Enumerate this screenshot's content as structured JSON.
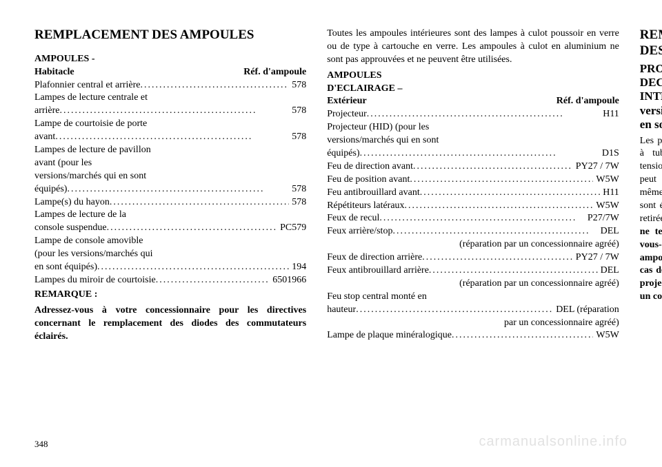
{
  "page_number": "348",
  "watermark": "carmanualsonline.info",
  "col1": {
    "title": "REMPLACEMENT DES AMPOULES",
    "subheader": "AMPOULES -",
    "table_header_left": "Habitacle",
    "table_header_right": "Réf. d'ampoule",
    "rows": [
      {
        "label": "Plafonnier central et arrière",
        "ref": "578"
      },
      {
        "label": "Lampes de lecture centrale et arrière",
        "ref": "578"
      },
      {
        "label": "Lampe de courtoisie de porte avant",
        "ref": "578"
      },
      {
        "label": "Lampes de lecture de pavillon avant (pour les versions/marchés qui en sont équipés)",
        "ref": "578"
      },
      {
        "label": "Lampe(s) du hayon",
        "ref": "578"
      },
      {
        "label": "Lampes de lecture de la console suspendue",
        "ref": "PC579"
      },
      {
        "label": "Lampe de console amovible (pour les versions/marchés qui en sont équipés)",
        "ref": "194"
      },
      {
        "label": "Lampes du miroir de courtoisie",
        "ref": "6501966"
      }
    ],
    "remark_label": "REMARQUE :",
    "remark_text": "Adressez-vous à votre concessionnaire pour les directives concernant le remplacement des diodes des commutateurs éclairés."
  },
  "col2": {
    "intro": "Toutes les ampoules intérieures sont des lampes à culot poussoir en verre ou de type à cartouche en verre. Les ampoules à culot en aluminium ne sont pas approuvées et ne peuvent être utilisées.",
    "subheader1": "AMPOULES",
    "subheader2": "D'ECLAIRAGE –",
    "table_header_left": "Extérieur",
    "table_header_right": "Réf. d'ampoule",
    "rows_a": [
      {
        "label": "Projecteur",
        "ref": "H11"
      },
      {
        "label": "Projecteur (HID) (pour les versions/marchés qui en sont équipés)",
        "ref": "D1S"
      },
      {
        "label": "Feu de direction avant",
        "ref": "PY27 / 7W"
      },
      {
        "label": "Feu de position avant",
        "ref": "W5W"
      },
      {
        "label": "Feu antibrouillard avant",
        "ref": "H11"
      },
      {
        "label": "Répétiteurs latéraux",
        "ref": "W5W"
      },
      {
        "label": "Feux de recul",
        "ref": "P27/7W"
      },
      {
        "label": "Feux arrière/stop",
        "ref": "DEL"
      }
    ],
    "note_a": "(réparation par un concessionnaire agréé)",
    "rows_b": [
      {
        "label": "Feux de direction arrière",
        "ref": "PY27 / 7W"
      },
      {
        "label": "Feux antibrouillard arrière",
        "ref": "DEL"
      }
    ],
    "note_b": "(réparation par un concessionnaire agréé)",
    "rows_c": [
      {
        "label_pre": "Feu stop central monté en",
        "label": "hauteur",
        "ref": "DEL (réparation"
      }
    ],
    "note_c": "par un concessionnaire agréé)",
    "rows_d": [
      {
        "label": "Lampe de plaque minéralogique",
        "ref": "W5W"
      }
    ]
  },
  "col3": {
    "title": "REMPLACEMENT DES AMPOULES",
    "subtitle": "PROJECTEURS A DECHARGE HAUTE INTENSITE (pour les versions/marchés qui en sont équipés)",
    "body_plain": "Les projecteurs sont du type à tube à décharge haute tension. Une haute tension peut rester dans le circuit même quand les projecteurs sont éteints et que la clé est retirée du contact. ",
    "body_bold": "Dès lors, ne tentez pas d'intervenir vous-même sur une ampoule de projecteur. En cas de panne d'ampoule de projecteur, adressez vous à un concessionnaire agréé."
  }
}
